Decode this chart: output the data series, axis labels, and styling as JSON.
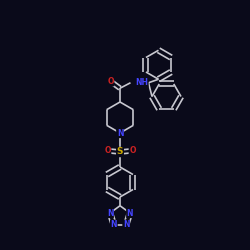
{
  "bg_color": "#0a0a1a",
  "bond_color": "#c8c8d0",
  "line_width": 1.2,
  "atom_colors": {
    "N": "#4444ff",
    "O": "#cc2222",
    "S": "#ccaa00",
    "C": "#c8c8d0"
  },
  "font_size": 5.5,
  "figsize": [
    2.5,
    2.5
  ],
  "dpi": 100,
  "xlim": [
    0,
    10
  ],
  "ylim": [
    0,
    10
  ]
}
